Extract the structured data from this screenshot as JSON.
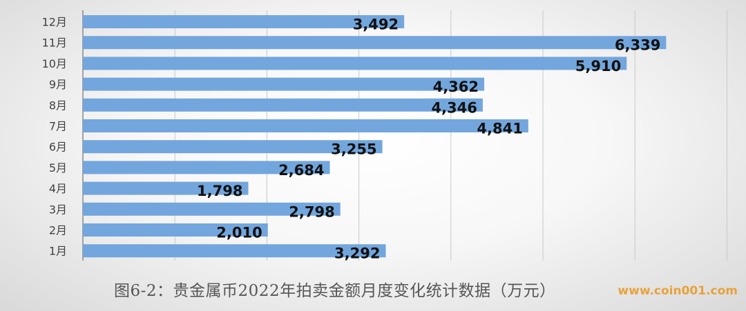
{
  "chart_data": {
    "type": "bar",
    "orientation": "horizontal",
    "categories": [
      "1月",
      "2月",
      "3月",
      "4月",
      "5月",
      "6月",
      "7月",
      "8月",
      "9月",
      "10月",
      "11月",
      "12月"
    ],
    "values": [
      3292,
      2010,
      2798,
      1798,
      2684,
      3255,
      4841,
      4346,
      4362,
      5910,
      6339,
      3492
    ],
    "value_labels": [
      "3,292",
      "2,010",
      "2,798",
      "1,798",
      "2,684",
      "3,255",
      "4,841",
      "4,346",
      "4,362",
      "5,910",
      "6,339",
      "3,492"
    ],
    "xlim": [
      0,
      7000
    ],
    "grid": true,
    "bar_color": "#72a6dd"
  },
  "caption": "图6-2：贵金属币2022年拍卖金额月度变化统计数据（万元）",
  "watermark": "www.coin001.com"
}
